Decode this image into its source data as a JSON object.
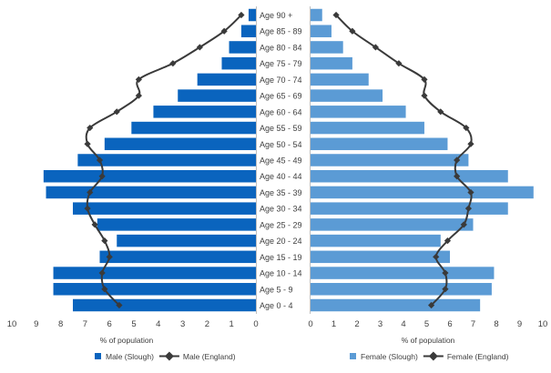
{
  "chart_data": {
    "type": "bar",
    "subtype": "population-pyramid",
    "categories": [
      "Age 0 - 4",
      "Age 5 - 9",
      "Age 10 - 14",
      "Age 15 - 19",
      "Age 20 - 24",
      "Age 25 - 29",
      "Age 30 - 34",
      "Age 35 - 39",
      "Age 40 - 44",
      "Age 45 - 49",
      "Age 50 - 54",
      "Age 55 - 59",
      "Age 60 - 64",
      "Age 65 - 69",
      "Age 70 - 74",
      "Age 75 - 79",
      "Age 80 - 84",
      "Age 85 - 89",
      "Age 90 +"
    ],
    "male": {
      "xlabel": "% of population",
      "xlim": [
        10,
        0
      ],
      "ticks": [
        "10",
        "9",
        "8",
        "7",
        "6",
        "5",
        "4",
        "3",
        "2",
        "1",
        "0"
      ],
      "series": [
        {
          "name": "Male (Slough)",
          "kind": "bar",
          "color": "#0a64be",
          "values": [
            7.5,
            8.3,
            8.3,
            6.4,
            5.7,
            6.5,
            7.5,
            8.6,
            8.7,
            7.3,
            6.2,
            5.1,
            4.2,
            3.2,
            2.4,
            1.4,
            1.1,
            0.6,
            0.3
          ]
        },
        {
          "name": "Male (England)",
          "kind": "line",
          "color": "#3a3a3a",
          "values": [
            5.6,
            6.2,
            6.3,
            6.0,
            6.2,
            6.6,
            6.9,
            6.8,
            6.3,
            6.4,
            6.9,
            6.8,
            5.7,
            4.8,
            4.8,
            3.4,
            2.3,
            1.3,
            0.6
          ]
        }
      ]
    },
    "female": {
      "xlabel": "% of population",
      "xlim": [
        0,
        10
      ],
      "ticks": [
        "0",
        "1",
        "2",
        "3",
        "4",
        "5",
        "6",
        "7",
        "8",
        "9",
        "10"
      ],
      "series": [
        {
          "name": "Female (Slough)",
          "kind": "bar",
          "color": "#5b9bd5",
          "values": [
            7.3,
            7.8,
            7.9,
            6.0,
            5.6,
            7.0,
            8.5,
            9.6,
            8.5,
            6.8,
            5.9,
            4.9,
            4.1,
            3.1,
            2.5,
            1.8,
            1.4,
            0.9,
            0.5
          ]
        },
        {
          "name": "Female (England)",
          "kind": "line",
          "color": "#3a3a3a",
          "values": [
            5.2,
            5.8,
            5.8,
            5.4,
            5.9,
            6.6,
            6.8,
            6.9,
            6.3,
            6.3,
            6.9,
            6.7,
            5.6,
            4.9,
            4.9,
            3.8,
            2.8,
            1.8,
            1.1
          ]
        }
      ]
    },
    "grid": false,
    "legend_position": "bottom"
  }
}
